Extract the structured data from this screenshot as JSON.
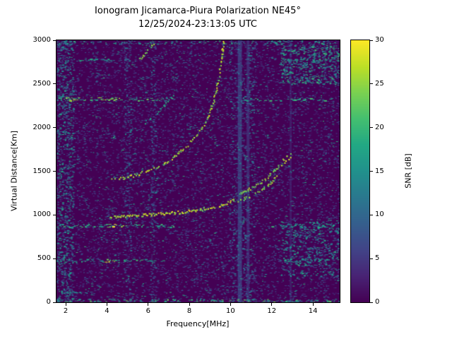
{
  "chart_data": {
    "type": "heatmap",
    "title": "Ionogram Jicamarca-Piura Polarization NE45°",
    "subtitle": "12/25/2024-23:13:05 UTC",
    "xlabel": "Frequency[MHz]",
    "ylabel": "Virtual Distance[Km]",
    "colorbar_label": "SNR [dB]",
    "xlim": [
      1.55,
      15.3
    ],
    "ylim": [
      0,
      3000
    ],
    "clim": [
      0,
      30
    ],
    "xticks": [
      2,
      4,
      6,
      8,
      10,
      12,
      14
    ],
    "yticks": [
      0,
      500,
      1000,
      1500,
      2000,
      2500,
      3000
    ],
    "colorbar_ticks": [
      0,
      5,
      10,
      15,
      20,
      25,
      30
    ],
    "grid": false,
    "colormap": {
      "name": "viridis",
      "stops": [
        "#440154",
        "#482475",
        "#414487",
        "#355f8d",
        "#2a788e",
        "#21918c",
        "#22a884",
        "#44bf70",
        "#7ad151",
        "#bddf26",
        "#fde725"
      ]
    },
    "noise": {
      "seed": 1337,
      "background_count": 9000,
      "clusters": [
        {
          "x": [
            1.55,
            2.35
          ],
          "y": [
            0,
            3000
          ],
          "count": 700,
          "v": [
            6,
            18
          ]
        },
        {
          "x": [
            9.9,
            11.15
          ],
          "y": [
            0,
            3000
          ],
          "count": 450,
          "v": [
            5,
            13
          ]
        },
        {
          "x": [
            12.4,
            15.25
          ],
          "y": [
            2500,
            2950
          ],
          "count": 450,
          "v": [
            9,
            21
          ]
        },
        {
          "x": [
            12.4,
            15.25
          ],
          "y": [
            300,
            950
          ],
          "count": 380,
          "v": [
            9,
            19
          ]
        },
        {
          "x": [
            1.55,
            15.25
          ],
          "y": [
            0,
            40
          ],
          "count": 160,
          "v": [
            10,
            24
          ]
        },
        {
          "x": [
            1.55,
            15.25
          ],
          "y": [
            2960,
            3000
          ],
          "count": 120,
          "v": [
            8,
            20
          ]
        },
        {
          "x": [
            4.8,
            5.15
          ],
          "y": [
            0,
            3000
          ],
          "count": 200,
          "v": [
            5,
            12
          ]
        },
        {
          "x": [
            6.1,
            6.35
          ],
          "y": [
            0,
            3000
          ],
          "count": 160,
          "v": [
            5,
            12
          ]
        }
      ]
    },
    "echo_traces": [
      {
        "name": "first-hop",
        "value": 27,
        "width": 2,
        "density": 0.85,
        "points": [
          [
            4.1,
            985
          ],
          [
            4.6,
            990
          ],
          [
            5.2,
            998
          ],
          [
            5.8,
            1005
          ],
          [
            6.4,
            1013
          ],
          [
            7.0,
            1024
          ],
          [
            7.6,
            1038
          ],
          [
            8.2,
            1055
          ],
          [
            8.8,
            1078
          ],
          [
            9.3,
            1105
          ],
          [
            9.8,
            1140
          ],
          [
            10.2,
            1180
          ]
        ]
      },
      {
        "name": "first-hop-upper-branch",
        "value": 24,
        "width": 2,
        "density": 0.75,
        "points": [
          [
            10.3,
            1235
          ],
          [
            10.8,
            1290
          ],
          [
            11.3,
            1355
          ],
          [
            11.8,
            1440
          ],
          [
            12.2,
            1530
          ],
          [
            12.4,
            1590
          ]
        ]
      },
      {
        "name": "first-hop-lower-branch",
        "value": 24,
        "width": 2,
        "density": 0.75,
        "points": [
          [
            10.35,
            1165
          ],
          [
            10.9,
            1215
          ],
          [
            11.4,
            1280
          ],
          [
            11.9,
            1365
          ],
          [
            12.3,
            1465
          ]
        ]
      },
      {
        "name": "first-hop-cusp-blob",
        "value": 26,
        "width": 4,
        "density": 0.9,
        "points": [
          [
            12.45,
            1600
          ],
          [
            12.7,
            1650
          ],
          [
            12.95,
            1695
          ]
        ]
      },
      {
        "name": "second-hop",
        "value": 26,
        "width": 2,
        "density": 0.6,
        "points": [
          [
            4.2,
            1405
          ],
          [
            4.8,
            1430
          ],
          [
            5.4,
            1465
          ],
          [
            6.0,
            1515
          ],
          [
            6.6,
            1580
          ],
          [
            7.2,
            1665
          ],
          [
            7.8,
            1775
          ],
          [
            8.3,
            1905
          ],
          [
            8.8,
            2075
          ],
          [
            9.15,
            2300
          ],
          [
            9.4,
            2560
          ],
          [
            9.55,
            2820
          ],
          [
            9.65,
            3010
          ]
        ]
      },
      {
        "name": "third-hop-faint",
        "value": 17,
        "width": 2,
        "density": 0.3,
        "points": [
          [
            4.3,
            1895
          ],
          [
            5.0,
            1960
          ],
          [
            5.7,
            2045
          ],
          [
            6.3,
            2150
          ],
          [
            6.8,
            2265
          ],
          [
            7.2,
            2390
          ]
        ]
      },
      {
        "name": "third-hop-top-segment",
        "value": 23,
        "width": 2,
        "density": 0.45,
        "points": [
          [
            5.55,
            2790
          ],
          [
            6.0,
            2895
          ],
          [
            6.4,
            3005
          ]
        ]
      }
    ],
    "interference_hlines": [
      {
        "y": 2330,
        "thickness": 2,
        "segments": [
          [
            1.55,
            7.3,
            19
          ],
          [
            10.6,
            14.95,
            18
          ],
          [
            2.0,
            4.6,
            24
          ]
        ]
      },
      {
        "y": 2780,
        "thickness": 1,
        "segments": [
          [
            2.4,
            4.3,
            15
          ],
          [
            12.5,
            14.7,
            15
          ]
        ]
      },
      {
        "y": 1950,
        "thickness": 1,
        "segments": [
          [
            1.55,
            2.6,
            12
          ]
        ]
      },
      {
        "y": 880,
        "thickness": 2,
        "segments": [
          [
            1.55,
            7.6,
            18
          ],
          [
            11.9,
            14.95,
            16
          ],
          [
            4.0,
            4.8,
            27
          ]
        ]
      },
      {
        "y": 480,
        "thickness": 2,
        "segments": [
          [
            1.55,
            6.7,
            17
          ],
          [
            12.5,
            14.8,
            15
          ],
          [
            3.9,
            4.5,
            25
          ]
        ]
      },
      {
        "y": 120,
        "thickness": 1,
        "segments": [
          [
            1.8,
            3.3,
            14
          ]
        ]
      }
    ],
    "interference_vbands": [
      {
        "x": 10.45,
        "halfwidth": 0.1,
        "value": 7,
        "alpha": 0.75
      },
      {
        "x": 10.85,
        "halfwidth": 0.07,
        "value": 6,
        "alpha": 0.6
      },
      {
        "x": 12.92,
        "halfwidth": 0.05,
        "value": 5,
        "alpha": 0.45
      }
    ]
  }
}
